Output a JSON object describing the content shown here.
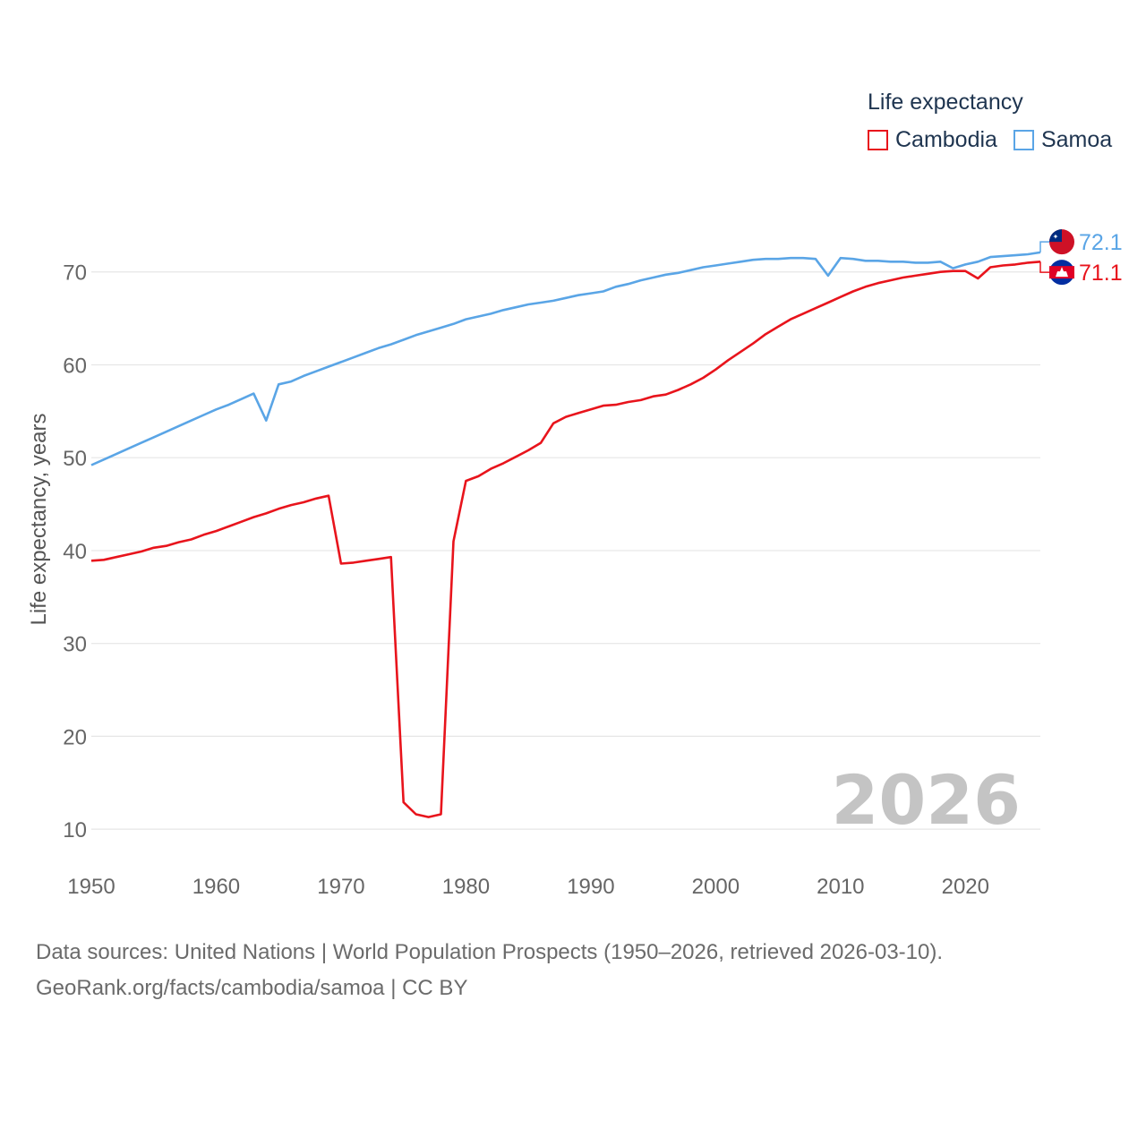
{
  "legend": {
    "title": "Life expectancy",
    "items": [
      {
        "label": "Cambodia",
        "color": "#e8141c"
      },
      {
        "label": "Samoa",
        "color": "#5aa5e6"
      }
    ]
  },
  "source": {
    "line1": "Data sources: United Nations | World Population Prospects (1950–2026, retrieved 2026-03-10).",
    "line2": "GeoRank.org/facts/cambodia/samoa | CC BY"
  },
  "chart_data": {
    "type": "line",
    "title": "Life expectancy",
    "xlabel": "",
    "ylabel": "Life expectancy, years",
    "xlim": [
      1950,
      2026
    ],
    "ylim": [
      5,
      80
    ],
    "xticks": [
      1950,
      1960,
      1970,
      1980,
      1990,
      2000,
      2010,
      2020
    ],
    "yticks": [
      10,
      20,
      30,
      40,
      50,
      60,
      70
    ],
    "grid": true,
    "year_label": "2026",
    "x": [
      1950,
      1951,
      1952,
      1953,
      1954,
      1955,
      1956,
      1957,
      1958,
      1959,
      1960,
      1961,
      1962,
      1963,
      1964,
      1965,
      1966,
      1967,
      1968,
      1969,
      1970,
      1971,
      1972,
      1973,
      1974,
      1975,
      1976,
      1977,
      1978,
      1979,
      1980,
      1981,
      1982,
      1983,
      1984,
      1985,
      1986,
      1987,
      1988,
      1989,
      1990,
      1991,
      1992,
      1993,
      1994,
      1995,
      1996,
      1997,
      1998,
      1999,
      2000,
      2001,
      2002,
      2003,
      2004,
      2005,
      2006,
      2007,
      2008,
      2009,
      2010,
      2011,
      2012,
      2013,
      2014,
      2015,
      2016,
      2017,
      2018,
      2019,
      2020,
      2021,
      2022,
      2023,
      2024,
      2025,
      2026
    ],
    "series": [
      {
        "name": "Cambodia",
        "color": "#e8141c",
        "end_label": "71.1",
        "values": [
          38.9,
          39.0,
          39.3,
          39.6,
          39.9,
          40.3,
          40.5,
          40.9,
          41.2,
          41.7,
          42.1,
          42.6,
          43.1,
          43.6,
          44.0,
          44.5,
          44.9,
          45.2,
          45.6,
          45.9,
          38.6,
          38.7,
          38.9,
          39.1,
          39.3,
          12.9,
          11.6,
          11.3,
          11.6,
          41.0,
          47.5,
          48.0,
          48.8,
          49.4,
          50.1,
          50.8,
          51.6,
          53.7,
          54.4,
          54.8,
          55.2,
          55.6,
          55.7,
          56.0,
          56.2,
          56.6,
          56.8,
          57.3,
          57.9,
          58.6,
          59.5,
          60.5,
          61.4,
          62.3,
          63.3,
          64.1,
          64.9,
          65.5,
          66.1,
          66.7,
          67.3,
          67.9,
          68.4,
          68.8,
          69.1,
          69.4,
          69.6,
          69.8,
          70.0,
          70.1,
          70.1,
          69.3,
          70.5,
          70.7,
          70.8,
          71.0,
          71.1
        ]
      },
      {
        "name": "Samoa",
        "color": "#5aa5e6",
        "end_label": "72.1",
        "values": [
          49.2,
          49.8,
          50.4,
          51.0,
          51.6,
          52.2,
          52.8,
          53.4,
          54.0,
          54.6,
          55.2,
          55.7,
          56.3,
          56.9,
          54.0,
          57.9,
          58.2,
          58.8,
          59.3,
          59.8,
          60.3,
          60.8,
          61.3,
          61.8,
          62.2,
          62.7,
          63.2,
          63.6,
          64.0,
          64.4,
          64.9,
          65.2,
          65.5,
          65.9,
          66.2,
          66.5,
          66.7,
          66.9,
          67.2,
          67.5,
          67.7,
          67.9,
          68.4,
          68.7,
          69.1,
          69.4,
          69.7,
          69.9,
          70.2,
          70.5,
          70.7,
          70.9,
          71.1,
          71.3,
          71.4,
          71.4,
          71.5,
          71.5,
          71.4,
          69.6,
          71.5,
          71.4,
          71.2,
          71.2,
          71.1,
          71.1,
          71.0,
          71.0,
          71.1,
          70.4,
          70.8,
          71.1,
          71.6,
          71.7,
          71.8,
          71.9,
          72.1
        ]
      }
    ]
  }
}
